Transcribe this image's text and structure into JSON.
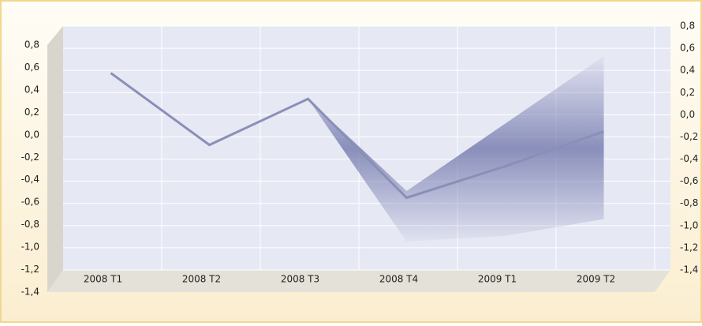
{
  "chart_data": {
    "type": "line",
    "categories": [
      "2008 T1",
      "2008 T2",
      "2008 T3",
      "2008 T4",
      "2009 T1",
      "2009 T2"
    ],
    "series": [
      {
        "color": "#8a8fb8",
        "values": [
          0.55,
          -0.09,
          0.32,
          -0.56,
          -0.28,
          0.03
        ]
      }
    ],
    "band": {
      "color": "#6c72a8",
      "lower": [
        null,
        null,
        0.32,
        -0.95,
        -0.9,
        -0.75
      ],
      "upper": [
        null,
        null,
        0.32,
        -0.5,
        0.1,
        0.7
      ]
    },
    "ylim": [
      -1.4,
      0.8
    ],
    "yticks": [
      {
        "value": 0.8,
        "label": "0,8"
      },
      {
        "value": 0.6,
        "label": "0,6"
      },
      {
        "value": 0.4,
        "label": "0,4"
      },
      {
        "value": 0.2,
        "label": "0,2"
      },
      {
        "value": 0.0,
        "label": "0,0"
      },
      {
        "value": -0.2,
        "label": "-0,2"
      },
      {
        "value": -0.4,
        "label": "-0,4"
      },
      {
        "value": -0.6,
        "label": "-0,6"
      },
      {
        "value": -0.8,
        "label": "-0,8"
      },
      {
        "value": -1.0,
        "label": "-1,0"
      },
      {
        "value": -1.2,
        "label": "-1,2"
      },
      {
        "value": -1.4,
        "label": "-1,4"
      }
    ],
    "y2lim": [
      -1.4,
      0.8
    ],
    "y2ticks": [
      {
        "value": 0.8,
        "label": "0,8"
      },
      {
        "value": 0.6,
        "label": "0,6"
      },
      {
        "value": 0.4,
        "label": "0,4"
      },
      {
        "value": 0.2,
        "label": "0,2"
      },
      {
        "value": 0.0,
        "label": "0,0"
      },
      {
        "value": -0.2,
        "label": "-0,2"
      },
      {
        "value": -0.4,
        "label": "-0,4"
      },
      {
        "value": -0.6,
        "label": "-0,6"
      },
      {
        "value": -0.8,
        "label": "-0,8"
      },
      {
        "value": -1.0,
        "label": "-1,0"
      },
      {
        "value": -1.2,
        "label": "-1,2"
      },
      {
        "value": -1.4,
        "label": "-1,4"
      }
    ],
    "grid": true
  }
}
